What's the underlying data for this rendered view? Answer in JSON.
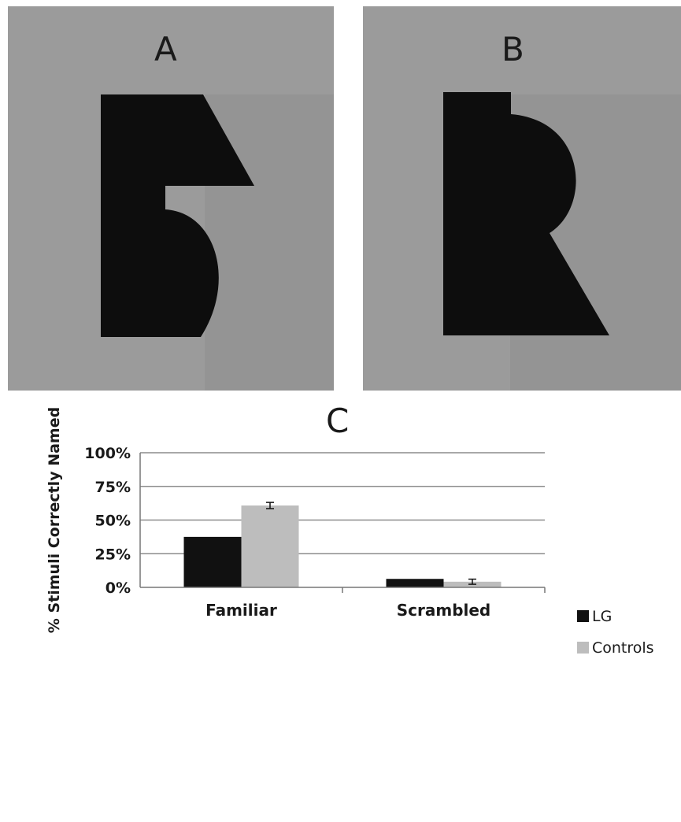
{
  "panels": [
    {
      "letter": "A"
    },
    {
      "letter": "B"
    }
  ],
  "chart_letter": "C",
  "chart_data": {
    "type": "bar",
    "title": "",
    "xlabel": "",
    "ylabel": "% Stimuli Correctly Named",
    "categories": [
      "Familiar",
      "Scrambled"
    ],
    "ylim": [
      0,
      100
    ],
    "yticks": [
      "0%",
      "25%",
      "50%",
      "75%",
      "100%"
    ],
    "grid": true,
    "legend_position": "right",
    "series": [
      {
        "name": "LG",
        "color": "#111111",
        "values": [
          37.5,
          6.3
        ],
        "errors": [
          null,
          null
        ]
      },
      {
        "name": "Controls",
        "color": "#bdbdbd",
        "values": [
          60.8,
          4.2
        ],
        "errors": [
          2.3,
          1.9
        ]
      }
    ]
  },
  "colors": {
    "panel_background": "#9b9b9b",
    "shape_fill": "#0d0d0d",
    "gridline": "#8c8c8c"
  }
}
